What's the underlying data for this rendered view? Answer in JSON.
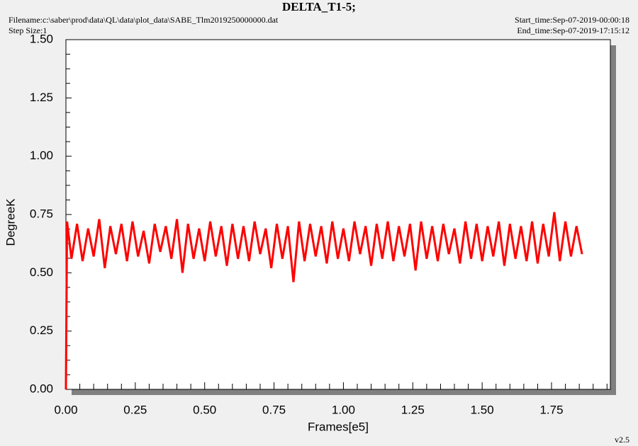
{
  "chart_data": {
    "type": "line",
    "title": "DELTA_T1-5;",
    "filename": "Filename:c:\\saber\\prod\\data\\QL\\data\\plot_data\\SABE_Tlm2019250000000.dat",
    "step_size": "Step Size:1",
    "start_time": "Start_time:Sep-07-2019-00:00:18",
    "end_time": "End_time:Sep-07-2019-17:15:12",
    "version": "v2.5",
    "xlabel": "Frames[e5]",
    "ylabel": "DegreeK",
    "xlim": [
      0,
      1.962
    ],
    "ylim": [
      0,
      1.5
    ],
    "xticks": [
      {
        "value": 0,
        "label": "0.00"
      },
      {
        "value": 0.25,
        "label": "0.25"
      },
      {
        "value": 0.5,
        "label": "0.50"
      },
      {
        "value": 0.75,
        "label": "0.75"
      },
      {
        "value": 1,
        "label": "1.00"
      },
      {
        "value": 1.25,
        "label": "1.25"
      },
      {
        "value": 1.5,
        "label": "1.50"
      },
      {
        "value": 1.75,
        "label": "1.75"
      }
    ],
    "yticks": [
      {
        "value": 0,
        "label": "0.00"
      },
      {
        "value": 0.25,
        "label": "0.25"
      },
      {
        "value": 0.5,
        "label": "0.50"
      },
      {
        "value": 0.75,
        "label": "0.75"
      },
      {
        "value": 1,
        "label": "1.00"
      },
      {
        "value": 1.25,
        "label": "1.25"
      },
      {
        "value": 1.5,
        "label": "1.50"
      }
    ],
    "series": [
      {
        "color": "#ff0000",
        "x": [
          0,
          0.004,
          0.02,
          0.04,
          0.06,
          0.08,
          0.1,
          0.12,
          0.14,
          0.16,
          0.18,
          0.2,
          0.22,
          0.24,
          0.26,
          0.28,
          0.3,
          0.32,
          0.34,
          0.36,
          0.38,
          0.4,
          0.42,
          0.44,
          0.46,
          0.48,
          0.5,
          0.52,
          0.54,
          0.56,
          0.58,
          0.6,
          0.62,
          0.64,
          0.66,
          0.68,
          0.7,
          0.72,
          0.74,
          0.76,
          0.78,
          0.8,
          0.82,
          0.84,
          0.86,
          0.88,
          0.9,
          0.92,
          0.94,
          0.96,
          0.98,
          1,
          1.02,
          1.04,
          1.06,
          1.08,
          1.1,
          1.12,
          1.14,
          1.16,
          1.18,
          1.2,
          1.22,
          1.24,
          1.26,
          1.28,
          1.3,
          1.32,
          1.34,
          1.36,
          1.38,
          1.4,
          1.42,
          1.44,
          1.46,
          1.48,
          1.5,
          1.52,
          1.54,
          1.56,
          1.58,
          1.6,
          1.62,
          1.64,
          1.66,
          1.68,
          1.7,
          1.72,
          1.74,
          1.76,
          1.78,
          1.8,
          1.82,
          1.84,
          1.86
        ],
        "values": [
          0,
          0.72,
          0.56,
          0.71,
          0.55,
          0.69,
          0.57,
          0.73,
          0.52,
          0.7,
          0.58,
          0.71,
          0.55,
          0.72,
          0.57,
          0.68,
          0.54,
          0.71,
          0.59,
          0.7,
          0.56,
          0.73,
          0.5,
          0.71,
          0.56,
          0.69,
          0.55,
          0.72,
          0.57,
          0.7,
          0.53,
          0.71,
          0.56,
          0.7,
          0.55,
          0.72,
          0.58,
          0.69,
          0.52,
          0.71,
          0.56,
          0.7,
          0.46,
          0.72,
          0.55,
          0.71,
          0.57,
          0.7,
          0.54,
          0.72,
          0.56,
          0.69,
          0.55,
          0.72,
          0.58,
          0.7,
          0.53,
          0.71,
          0.56,
          0.72,
          0.55,
          0.7,
          0.57,
          0.71,
          0.51,
          0.72,
          0.56,
          0.7,
          0.55,
          0.71,
          0.58,
          0.69,
          0.54,
          0.72,
          0.56,
          0.71,
          0.55,
          0.7,
          0.57,
          0.72,
          0.53,
          0.71,
          0.56,
          0.7,
          0.55,
          0.72,
          0.54,
          0.71,
          0.57,
          0.76,
          0.55,
          0.72,
          0.57,
          0.7,
          0.58
        ]
      }
    ]
  }
}
